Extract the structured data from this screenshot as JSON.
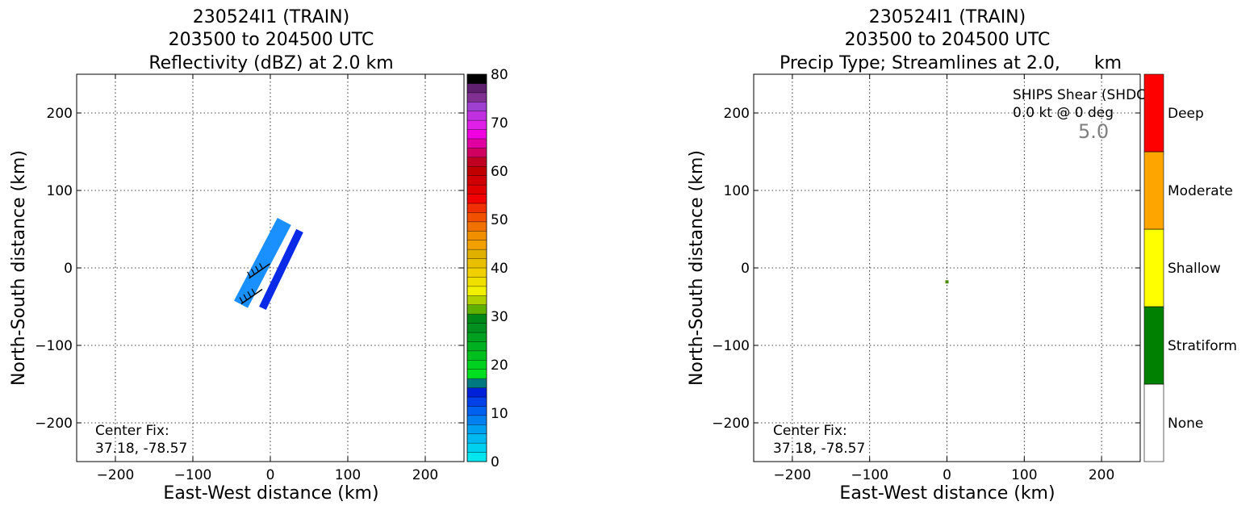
{
  "chart_data": [
    {
      "type": "heatmap",
      "title": [
        "230524I1 (TRAIN)",
        "203500 to 204500 UTC",
        "Reflectivity (dBZ) at 2.0 km"
      ],
      "xlabel": "East-West distance (km)",
      "ylabel": "North-South distance (km)",
      "xlim": [
        -250,
        250
      ],
      "ylim": [
        -250,
        250
      ],
      "xticks": [
        -200,
        -100,
        0,
        100,
        200
      ],
      "yticks": [
        -200,
        -100,
        0,
        100,
        200
      ],
      "grid": true,
      "annotation": [
        "Center Fix:",
        "37.18, -78.57"
      ],
      "colorbar": {
        "range": [
          0,
          80
        ],
        "ticks": [
          0,
          10,
          20,
          30,
          40,
          50,
          60,
          70,
          80
        ],
        "colors": [
          "#00e5ee",
          "#00d0f0",
          "#00b8f0",
          "#009ff0",
          "#0080f0",
          "#0060f0",
          "#0040e8",
          "#0020d8",
          "#007880",
          "#00e020",
          "#00d020",
          "#00c020",
          "#00b020",
          "#00a020",
          "#009020",
          "#008818",
          "#60b000",
          "#b0d000",
          "#f0f000",
          "#f0e000",
          "#f0d000",
          "#e8c000",
          "#e0b000",
          "#f0a000",
          "#f09000",
          "#f07000",
          "#f05000",
          "#f03000",
          "#f00000",
          "#e00000",
          "#d00000",
          "#c00000",
          "#c00020",
          "#d00060",
          "#e000a0",
          "#f000e0",
          "#e020e8",
          "#c030e0",
          "#a040d0",
          "#803090",
          "#602070",
          "#000000"
        ]
      },
      "bands": [
        {
          "name": "outer",
          "color": "#1a90ff",
          "from": [
            -38,
            -47
          ],
          "to": [
            18,
            60
          ],
          "width": 20
        },
        {
          "name": "inner",
          "color": "#0a2ae8",
          "from": [
            -10,
            -52
          ],
          "to": [
            38,
            48
          ],
          "width": 10
        }
      ],
      "arrows": [
        {
          "x": -15,
          "y": -5,
          "label": "wind-barb-upper"
        },
        {
          "x": -25,
          "y": -38,
          "label": "wind-barb-lower"
        }
      ]
    },
    {
      "type": "heatmap",
      "title": [
        "230524I1 (TRAIN)",
        "203500 to 204500 UTC",
        "Precip Type; Streamlines at 2.0,      km"
      ],
      "xlabel": "East-West distance (km)",
      "ylabel": "North-South distance (km)",
      "xlim": [
        -250,
        250
      ],
      "ylim": [
        -250,
        250
      ],
      "xticks": [
        -200,
        -100,
        0,
        100,
        200
      ],
      "yticks": [
        -200,
        -100,
        0,
        100,
        200
      ],
      "grid": true,
      "annotation": [
        "Center Fix:",
        "37.18, -78.57"
      ],
      "shear_text": [
        "SHIPS Shear (SHDC):",
        "0.0 kt @ 0 deg"
      ],
      "shear_value": "5.0",
      "colorbar": {
        "categories": [
          "None",
          "Stratiform",
          "Shallow",
          "Moderate",
          "Deep"
        ],
        "colors": [
          "#ffffff",
          "#008000",
          "#ffff00",
          "#ffa500",
          "#ff0000"
        ]
      },
      "point": {
        "x": 0,
        "y": -18,
        "color": "#4a8a00"
      }
    }
  ]
}
